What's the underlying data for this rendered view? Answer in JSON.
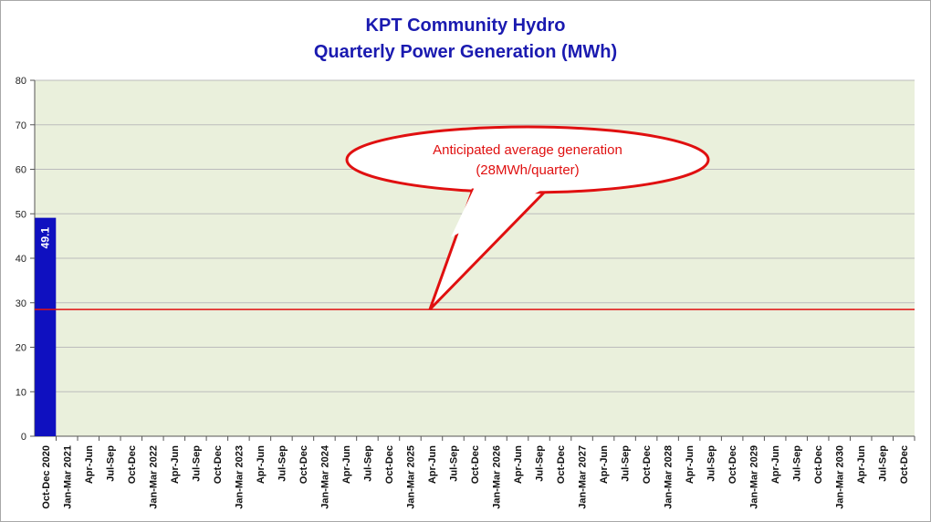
{
  "chart_data": {
    "type": "bar",
    "title": [
      "KPT Community Hydro",
      "Quarterly Power Generation (MWh)"
    ],
    "categories": [
      "Oct-Dec 2020",
      "Jan-Mar 2021",
      "Apr-Jun",
      "Jul-Sep",
      "Oct-Dec",
      "Jan-Mar 2022",
      "Apr-Jun",
      "Jul-Sep",
      "Oct-Dec",
      "Jan-Mar 2023",
      "Apr-Jun",
      "Jul-Sep",
      "Oct-Dec",
      "Jan-Mar 2024",
      "Apr-Jun",
      "Jul-Sep",
      "Oct-Dec",
      "Jan-Mar 2025",
      "Apr-Jun",
      "Jul-Sep",
      "Oct-Dec",
      "Jan-Mar 2026",
      "Apr-Jun",
      "Jul-Sep",
      "Oct-Dec",
      "Jan-Mar 2027",
      "Apr-Jun",
      "Jul-Sep",
      "Oct-Dec",
      "Jan-Mar 2028",
      "Apr-Jun",
      "Jul-Sep",
      "Oct-Dec",
      "Jan-Mar 2029",
      "Apr-Jun",
      "Jul-Sep",
      "Oct-Dec",
      "Jan-Mar 2030",
      "Apr-Jun",
      "Jul-Sep",
      "Oct-Dec"
    ],
    "values": [
      49.1,
      null,
      null,
      null,
      null,
      null,
      null,
      null,
      null,
      null,
      null,
      null,
      null,
      null,
      null,
      null,
      null,
      null,
      null,
      null,
      null,
      null,
      null,
      null,
      null,
      null,
      null,
      null,
      null,
      null,
      null,
      null,
      null,
      null,
      null,
      null,
      null,
      null,
      null,
      null,
      null
    ],
    "data_labels": [
      "49.1"
    ],
    "reference_line": {
      "value": 28.5,
      "annotation": [
        "Anticipated average generation",
        "(28MWh/quarter)"
      ]
    },
    "ylim": [
      0,
      80
    ],
    "yticks": [
      "0",
      "10",
      "20",
      "30",
      "40",
      "50",
      "60",
      "70",
      "80"
    ],
    "grid": true,
    "xlabel": "",
    "ylabel": "",
    "colors": {
      "bar": "#0f10c0",
      "plot_bg": "#eaf0dc",
      "grid": "#bcbcbc",
      "reference": "#e01010",
      "title": "#1a1ab0"
    }
  }
}
